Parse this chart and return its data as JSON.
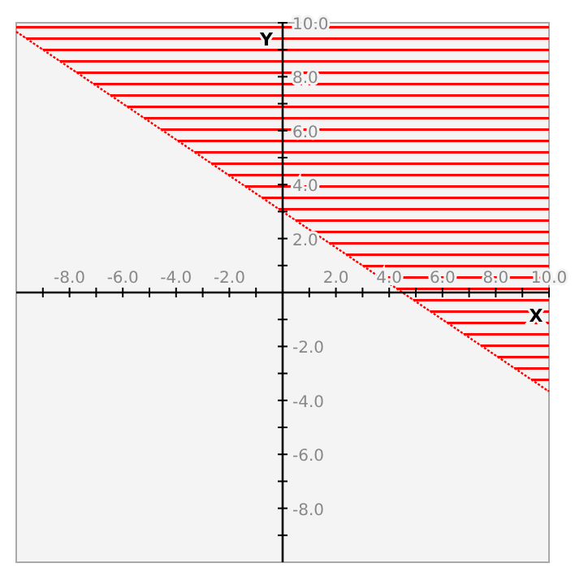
{
  "chart_data": {
    "type": "line",
    "xlabel": "X",
    "ylabel": "Y",
    "xlim": [
      -10,
      10
    ],
    "ylim": [
      -10,
      10
    ],
    "xticks": [
      {
        "value": -9,
        "label": null
      },
      {
        "value": -8,
        "label": "-8.0"
      },
      {
        "value": -7,
        "label": null
      },
      {
        "value": -6,
        "label": "-6.0"
      },
      {
        "value": -5,
        "label": null
      },
      {
        "value": -4,
        "label": "-4.0"
      },
      {
        "value": -3,
        "label": null
      },
      {
        "value": -2,
        "label": "-2.0"
      },
      {
        "value": -1,
        "label": null
      },
      {
        "value": 1,
        "label": null
      },
      {
        "value": 2,
        "label": "2.0"
      },
      {
        "value": 3,
        "label": null
      },
      {
        "value": 4,
        "label": "4.0"
      },
      {
        "value": 5,
        "label": null
      },
      {
        "value": 6,
        "label": "6.0"
      },
      {
        "value": 7,
        "label": null
      },
      {
        "value": 8,
        "label": "8.0"
      },
      {
        "value": 9,
        "label": null
      },
      {
        "value": 10,
        "label": "10.0"
      }
    ],
    "yticks": [
      {
        "value": -9,
        "label": null
      },
      {
        "value": -8,
        "label": "-8.0"
      },
      {
        "value": -7,
        "label": null
      },
      {
        "value": -6,
        "label": "-6.0"
      },
      {
        "value": -5,
        "label": null
      },
      {
        "value": -4,
        "label": "-4.0"
      },
      {
        "value": -3,
        "label": null
      },
      {
        "value": -2,
        "label": "-2.0"
      },
      {
        "value": -1,
        "label": null
      },
      {
        "value": 1,
        "label": null
      },
      {
        "value": 2,
        "label": "2.0"
      },
      {
        "value": 3,
        "label": null
      },
      {
        "value": 4,
        "label": "4.0"
      },
      {
        "value": 5,
        "label": null
      },
      {
        "value": 6,
        "label": "6.0"
      },
      {
        "value": 7,
        "label": null
      },
      {
        "value": 8,
        "label": "8.0"
      },
      {
        "value": 9,
        "label": null
      },
      {
        "value": 10,
        "label": "10.0"
      }
    ],
    "grid": false,
    "marker": "none",
    "line_style": "dotted",
    "series": [
      {
        "color": "#ff0000",
        "x": [
          -10,
          10
        ],
        "values": [
          9.67,
          -3.67
        ],
        "lower": [
          9.67,
          -3.67
        ],
        "upper": [
          10,
          10
        ]
      }
    ]
  }
}
